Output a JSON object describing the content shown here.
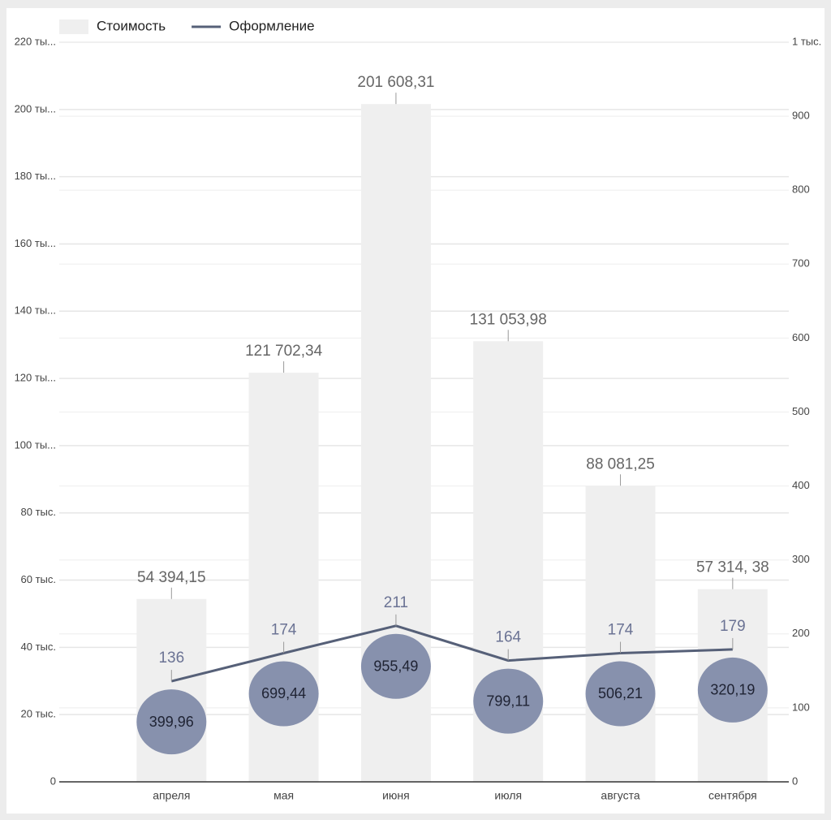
{
  "chart_data": {
    "type": "bar",
    "categories": [
      "апреля",
      "мая",
      "июня",
      "июля",
      "августа",
      "сентября"
    ],
    "series": [
      {
        "name": "Стоимость",
        "type": "bar",
        "color": "#efefef",
        "values": [
          54394.15,
          121702.34,
          201608.31,
          131053.98,
          88081.25,
          57314.38
        ],
        "value_labels": [
          "54 394,15",
          "121 702,34",
          "201 608,31",
          "131 053,98",
          "88 081,25",
          "57 314, 38"
        ]
      },
      {
        "name": "Оформление",
        "type": "line",
        "axis": "y2",
        "color": "#566078",
        "values": [
          136,
          174,
          211,
          164,
          174,
          179
        ]
      },
      {
        "type": "bubble",
        "color": "#8791ad",
        "values": [
          399.96,
          699.44,
          955.49,
          799.11,
          506.21,
          320.19
        ],
        "value_labels": [
          "399,96",
          "699,44",
          "955,49",
          "799,11",
          "506,21",
          "320,19"
        ]
      }
    ],
    "ylim": [
      0,
      220000
    ],
    "yticks": [
      0,
      {
        "value": 20000,
        "label": "20 тыс."
      },
      {
        "value": 40000,
        "label": "40 тыс."
      },
      {
        "value": 60000,
        "label": "60 тыс."
      },
      {
        "value": 80000,
        "label": "80 тыс."
      },
      {
        "value": 100000,
        "label": "100 ты..."
      },
      {
        "value": 120000,
        "label": "120 ты..."
      },
      {
        "value": 140000,
        "label": "140 ты..."
      },
      {
        "value": 160000,
        "label": "160 ты..."
      },
      {
        "value": 180000,
        "label": "180 ты..."
      },
      {
        "value": 200000,
        "label": "200 ты..."
      },
      {
        "value": 220000,
        "label": "220 ты..."
      }
    ],
    "y2lim": [
      0,
      1000
    ],
    "y2ticks": [
      0,
      100,
      200,
      300,
      400,
      500,
      600,
      700,
      800,
      900,
      {
        "value": 1000,
        "label": "1 тыс."
      }
    ],
    "grid": true,
    "legend": "top-left"
  }
}
